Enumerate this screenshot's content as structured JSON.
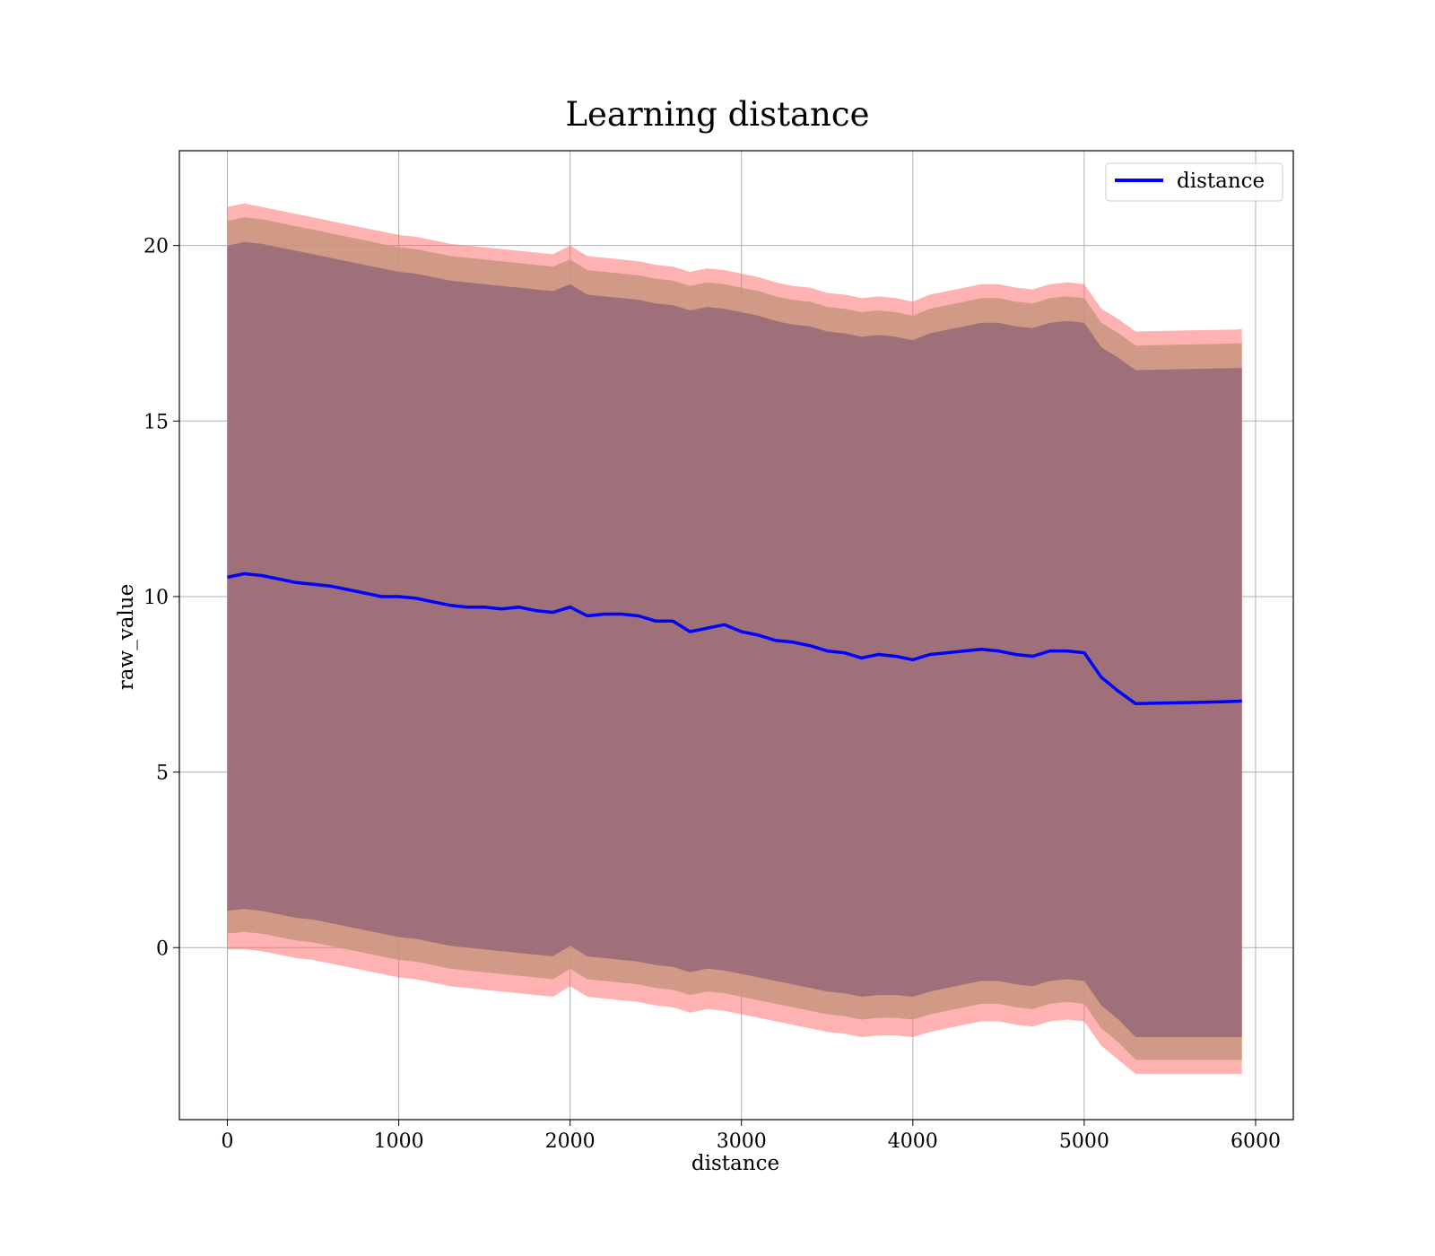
{
  "chart_data": {
    "type": "area",
    "title": "Learning distance",
    "xlabel": "distance",
    "ylabel": "raw_value",
    "xlim": [
      -280,
      6220
    ],
    "ylim": [
      -4.9,
      22.7
    ],
    "xticks": [
      0,
      1000,
      2000,
      3000,
      4000,
      5000,
      6000
    ],
    "yticks": [
      0,
      5,
      10,
      15,
      20
    ],
    "xtick_labels": [
      "0",
      "1000",
      "2000",
      "3000",
      "4000",
      "5000",
      "6000"
    ],
    "ytick_labels": [
      "0",
      "5",
      "10",
      "15",
      "20"
    ],
    "grid": true,
    "legend": {
      "position": "top-right",
      "entries": [
        "distance"
      ]
    },
    "colors": {
      "line": "#0000ff",
      "band_outer": "#ff6666",
      "band_middle": "#c9957e",
      "band_inner": "#a0707a",
      "grid": "#b0b0b0"
    },
    "x": [
      0,
      100,
      200,
      300,
      400,
      500,
      600,
      700,
      800,
      900,
      1000,
      1100,
      1200,
      1300,
      1400,
      1500,
      1600,
      1700,
      1800,
      1900,
      2000,
      2100,
      2200,
      2300,
      2400,
      2500,
      2600,
      2700,
      2800,
      2900,
      3000,
      3100,
      3200,
      3300,
      3400,
      3500,
      3600,
      3700,
      3800,
      3900,
      4000,
      4100,
      4200,
      4300,
      4400,
      4500,
      4600,
      4700,
      4800,
      4900,
      5000,
      5100,
      5200,
      5300,
      5400,
      5500,
      5600,
      5700,
      5800,
      5900,
      5920
    ],
    "series": [
      {
        "name": "distance",
        "values": [
          10.55,
          10.65,
          10.6,
          10.5,
          10.4,
          10.35,
          10.3,
          10.2,
          10.1,
          10.0,
          10.0,
          9.95,
          9.85,
          9.75,
          9.7,
          9.7,
          9.65,
          9.7,
          9.6,
          9.55,
          9.7,
          9.45,
          9.5,
          9.5,
          9.45,
          9.3,
          9.3,
          9.0,
          9.1,
          9.2,
          9.0,
          8.9,
          8.75,
          8.7,
          8.6,
          8.45,
          8.4,
          8.25,
          8.35,
          8.3,
          8.2,
          8.35,
          8.4,
          8.45,
          8.5,
          8.45,
          8.35,
          8.3,
          8.45,
          8.45,
          8.4,
          7.7,
          7.3,
          6.95,
          6.96,
          6.97,
          6.98,
          6.99,
          7.0,
          7.02,
          7.03
        ]
      }
    ],
    "bands": [
      {
        "upper": [
          21.1,
          21.2,
          21.1,
          21.0,
          20.9,
          20.8,
          20.7,
          20.6,
          20.5,
          20.4,
          20.3,
          20.25,
          20.15,
          20.05,
          20.0,
          19.95,
          19.9,
          19.85,
          19.8,
          19.75,
          20.0,
          19.7,
          19.65,
          19.6,
          19.55,
          19.45,
          19.4,
          19.25,
          19.35,
          19.3,
          19.2,
          19.1,
          18.95,
          18.85,
          18.8,
          18.65,
          18.6,
          18.5,
          18.55,
          18.5,
          18.4,
          18.6,
          18.7,
          18.8,
          18.9,
          18.9,
          18.8,
          18.75,
          18.9,
          18.95,
          18.9,
          18.2,
          17.9,
          17.55,
          17.56,
          17.57,
          17.58,
          17.59,
          17.6,
          17.61,
          17.62
        ],
        "lower": [
          -0.05,
          -0.05,
          -0.1,
          -0.2,
          -0.3,
          -0.35,
          -0.45,
          -0.55,
          -0.65,
          -0.75,
          -0.85,
          -0.9,
          -1.0,
          -1.1,
          -1.15,
          -1.2,
          -1.25,
          -1.3,
          -1.35,
          -1.4,
          -1.1,
          -1.4,
          -1.45,
          -1.5,
          -1.55,
          -1.65,
          -1.7,
          -1.85,
          -1.75,
          -1.8,
          -1.9,
          -2.0,
          -2.1,
          -2.2,
          -2.3,
          -2.4,
          -2.45,
          -2.55,
          -2.5,
          -2.5,
          -2.55,
          -2.4,
          -2.3,
          -2.2,
          -2.1,
          -2.1,
          -2.2,
          -2.25,
          -2.1,
          -2.05,
          -2.1,
          -2.8,
          -3.2,
          -3.6,
          -3.6,
          -3.6,
          -3.6,
          -3.6,
          -3.6,
          -3.6,
          -3.6
        ]
      },
      {
        "upper": [
          20.7,
          20.8,
          20.75,
          20.65,
          20.55,
          20.45,
          20.35,
          20.25,
          20.15,
          20.05,
          19.95,
          19.9,
          19.8,
          19.7,
          19.65,
          19.6,
          19.55,
          19.5,
          19.45,
          19.4,
          19.6,
          19.3,
          19.25,
          19.2,
          19.15,
          19.05,
          19.0,
          18.85,
          18.95,
          18.9,
          18.8,
          18.7,
          18.55,
          18.45,
          18.4,
          18.25,
          18.2,
          18.1,
          18.15,
          18.1,
          18.0,
          18.2,
          18.3,
          18.4,
          18.5,
          18.5,
          18.4,
          18.35,
          18.5,
          18.55,
          18.5,
          17.8,
          17.5,
          17.15,
          17.16,
          17.17,
          17.18,
          17.19,
          17.2,
          17.21,
          17.22
        ],
        "lower": [
          0.4,
          0.45,
          0.4,
          0.3,
          0.2,
          0.15,
          0.05,
          -0.05,
          -0.15,
          -0.25,
          -0.35,
          -0.4,
          -0.5,
          -0.6,
          -0.65,
          -0.7,
          -0.75,
          -0.8,
          -0.85,
          -0.9,
          -0.6,
          -0.9,
          -0.95,
          -1.0,
          -1.05,
          -1.15,
          -1.2,
          -1.35,
          -1.25,
          -1.3,
          -1.4,
          -1.5,
          -1.6,
          -1.7,
          -1.8,
          -1.9,
          -1.95,
          -2.05,
          -2.0,
          -2.0,
          -2.05,
          -1.9,
          -1.8,
          -1.7,
          -1.6,
          -1.6,
          -1.7,
          -1.75,
          -1.6,
          -1.55,
          -1.6,
          -2.3,
          -2.7,
          -3.2,
          -3.2,
          -3.2,
          -3.2,
          -3.2,
          -3.2,
          -3.2,
          -3.2
        ]
      },
      {
        "upper": [
          20.0,
          20.1,
          20.05,
          19.95,
          19.85,
          19.75,
          19.65,
          19.55,
          19.45,
          19.35,
          19.25,
          19.2,
          19.1,
          19.0,
          18.95,
          18.9,
          18.85,
          18.8,
          18.75,
          18.7,
          18.9,
          18.6,
          18.55,
          18.5,
          18.45,
          18.35,
          18.3,
          18.15,
          18.25,
          18.2,
          18.1,
          18.0,
          17.85,
          17.75,
          17.7,
          17.55,
          17.5,
          17.4,
          17.45,
          17.4,
          17.3,
          17.5,
          17.6,
          17.7,
          17.8,
          17.8,
          17.7,
          17.65,
          17.8,
          17.85,
          17.8,
          17.1,
          16.8,
          16.45,
          16.46,
          16.47,
          16.48,
          16.49,
          16.5,
          16.51,
          16.52
        ],
        "lower": [
          1.05,
          1.1,
          1.05,
          0.95,
          0.85,
          0.8,
          0.7,
          0.6,
          0.5,
          0.4,
          0.3,
          0.25,
          0.15,
          0.05,
          0.0,
          -0.05,
          -0.1,
          -0.15,
          -0.2,
          -0.25,
          0.05,
          -0.25,
          -0.3,
          -0.35,
          -0.4,
          -0.5,
          -0.55,
          -0.7,
          -0.6,
          -0.65,
          -0.75,
          -0.85,
          -0.95,
          -1.05,
          -1.15,
          -1.25,
          -1.3,
          -1.4,
          -1.35,
          -1.35,
          -1.4,
          -1.25,
          -1.15,
          -1.05,
          -0.95,
          -0.95,
          -1.05,
          -1.1,
          -0.95,
          -0.9,
          -0.95,
          -1.65,
          -2.05,
          -2.55,
          -2.55,
          -2.55,
          -2.55,
          -2.55,
          -2.55,
          -2.55,
          -2.55
        ]
      }
    ]
  }
}
